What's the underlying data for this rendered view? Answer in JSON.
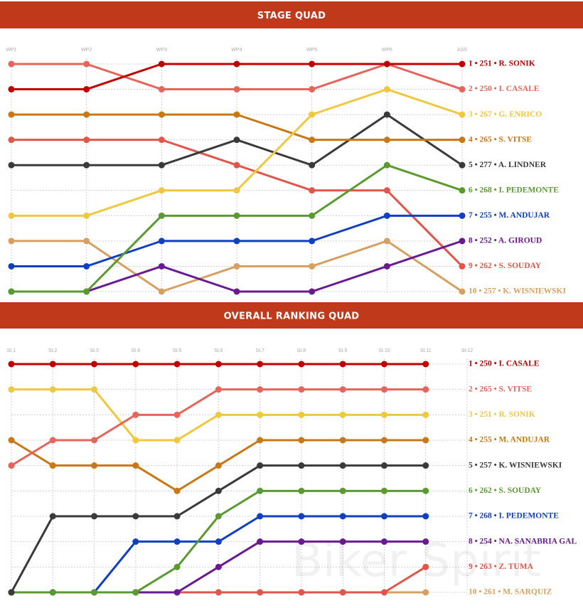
{
  "chart_data": [
    {
      "type": "line",
      "title": "STAGE QUAD",
      "grid": true,
      "ylim": [
        10,
        1
      ],
      "categories": [
        "WP1",
        "WP2",
        "WP3",
        "WP4",
        "WP5",
        "WP6",
        "ASS"
      ],
      "series": [
        {
          "name": "1 • 251 • R. SONIK",
          "color": "#c00000",
          "values": [
            2,
            2,
            1,
            1,
            1,
            1,
            1
          ]
        },
        {
          "name": "2 • 250 • I. CASALE",
          "color": "#e8645a",
          "values": [
            1,
            1,
            2,
            2,
            2,
            1,
            2
          ]
        },
        {
          "name": "3 • 267 • G. ENRICO",
          "color": "#f0c840",
          "values": [
            7,
            7,
            6,
            6,
            3,
            2,
            3
          ]
        },
        {
          "name": "4 • 265 • S. VITSE",
          "color": "#c87814",
          "values": [
            3,
            3,
            3,
            3,
            4,
            4,
            4
          ]
        },
        {
          "name": "5 • 277 • A. LINDNER",
          "color": "#3a3a3a",
          "values": [
            5,
            5,
            5,
            4,
            5,
            3,
            5
          ]
        },
        {
          "name": "6 • 268 • I. PEDEMONTE",
          "color": "#5a9a30",
          "values": [
            10,
            10,
            7,
            7,
            7,
            5,
            6
          ]
        },
        {
          "name": "7 • 255 • M. ANDUJAR",
          "color": "#1040c0",
          "values": [
            9,
            9,
            8,
            8,
            8,
            7,
            7
          ]
        },
        {
          "name": "8 • 252 • A. GIROUD",
          "color": "#6a1a90",
          "values": [
            10,
            10,
            9,
            10,
            10,
            9,
            8
          ]
        },
        {
          "name": "9 • 262 • S. SOUDAY",
          "color": "#e0564a",
          "values": [
            4,
            4,
            4,
            5,
            6,
            6,
            9
          ]
        },
        {
          "name": "10 • 257 • K. WISNIEWSKI",
          "color": "#d8a060",
          "values": [
            8,
            8,
            10,
            9,
            9,
            8,
            10
          ]
        }
      ]
    },
    {
      "type": "line",
      "title": "OVERALL RANKING QUAD",
      "grid": true,
      "ylim": [
        10,
        1
      ],
      "watermark": "Biker Spirit",
      "categories": [
        "St.1",
        "St.2",
        "St.3",
        "St.4",
        "St.5",
        "St.6",
        "St.7",
        "St.8",
        "St.9",
        "St.10",
        "St.11",
        "St.12"
      ],
      "series": [
        {
          "name": "1 • 250 • I. CASALE",
          "color": "#c00000",
          "values": [
            1,
            1,
            1,
            1,
            1,
            1,
            1,
            1,
            1,
            1,
            1,
            null
          ]
        },
        {
          "name": "2 • 265 • S. VITSE",
          "color": "#e8645a",
          "values": [
            5,
            4,
            4,
            3,
            3,
            2,
            2,
            2,
            2,
            2,
            2,
            null
          ]
        },
        {
          "name": "3 • 251 • R. SONIK",
          "color": "#f0c840",
          "values": [
            2,
            2,
            2,
            4,
            4,
            3,
            3,
            3,
            3,
            3,
            3,
            null
          ]
        },
        {
          "name": "4 • 255 • M. ANDUJAR",
          "color": "#c87814",
          "values": [
            4,
            5,
            5,
            5,
            6,
            5,
            4,
            4,
            4,
            4,
            4,
            null
          ]
        },
        {
          "name": "5 • 257 • K. WISNIEWSKI",
          "color": "#3a3a3a",
          "values": [
            10,
            7,
            7,
            7,
            7,
            6,
            5,
            5,
            5,
            5,
            5,
            null
          ]
        },
        {
          "name": "6 • 262 • S. SOUDAY",
          "color": "#5a9a30",
          "values": [
            10,
            10,
            10,
            10,
            9,
            7,
            6,
            6,
            6,
            6,
            6,
            null
          ]
        },
        {
          "name": "7 • 268 • I. PEDEMONTE",
          "color": "#1040c0",
          "values": [
            10,
            10,
            10,
            8,
            8,
            8,
            7,
            7,
            7,
            7,
            7,
            null
          ]
        },
        {
          "name": "8 • 254 • NA. SANABRIA GAL",
          "color": "#6a1a90",
          "values": [
            10,
            10,
            10,
            10,
            10,
            9,
            8,
            8,
            8,
            8,
            8,
            null
          ]
        },
        {
          "name": "9 • 263 • Z. TUMA",
          "color": "#e0564a",
          "values": [
            10,
            10,
            10,
            10,
            10,
            10,
            10,
            10,
            10,
            10,
            9,
            null
          ]
        },
        {
          "name": "10 • 261 • M. SARQUIZ",
          "color": "#d8a060",
          "values": [
            10,
            10,
            10,
            10,
            10,
            10,
            10,
            10,
            10,
            10,
            10,
            null
          ]
        }
      ]
    }
  ]
}
